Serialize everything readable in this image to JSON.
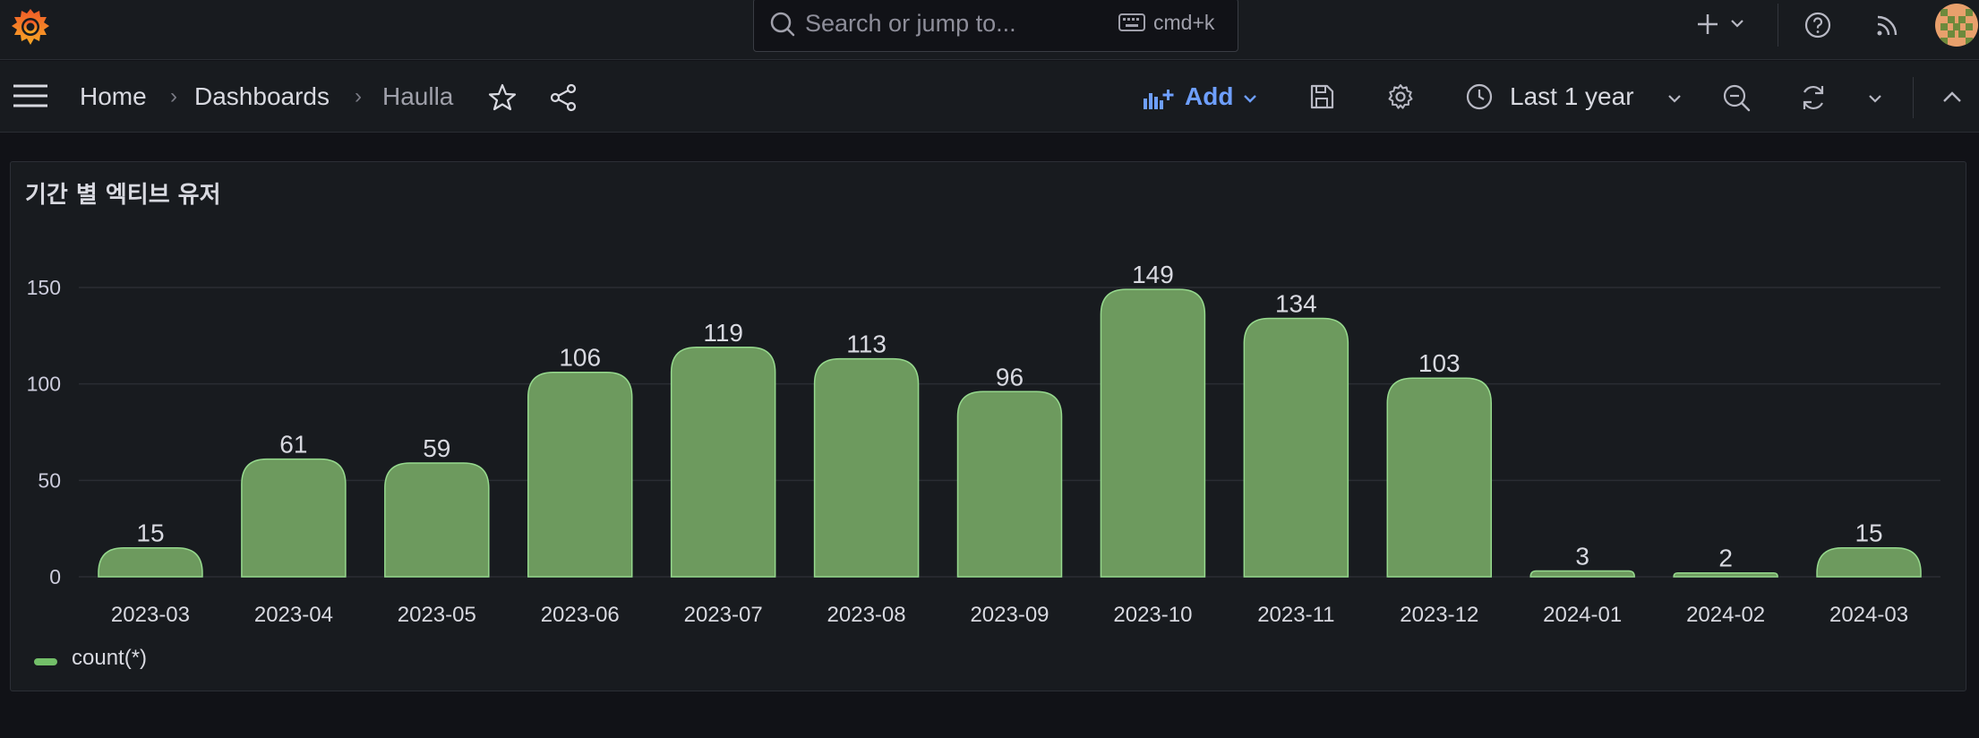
{
  "search": {
    "placeholder": "Search or jump to...",
    "shortcut": "cmd+k"
  },
  "breadcrumb": {
    "home": "Home",
    "dashboards": "Dashboards",
    "current": "Haulla"
  },
  "toolbar": {
    "add_label": "Add",
    "time_range": "Last 1 year"
  },
  "panel": {
    "title": "기간 별 엑티브 유저"
  },
  "colors": {
    "bar_fill": "#6d9a5e",
    "bar_stroke": "#96d98d",
    "accent": "#6e9fff",
    "legend": "#73bf69"
  },
  "icons": [
    "grafana-logo-icon",
    "search-icon",
    "keyboard-icon",
    "plus-icon",
    "chevron-down-icon",
    "help-icon",
    "rss-icon",
    "menu-icon",
    "star-icon",
    "share-icon",
    "add-panel-icon",
    "save-icon",
    "gear-icon",
    "clock-icon",
    "zoom-out-icon",
    "refresh-icon",
    "collapse-icon"
  ],
  "chart_data": {
    "type": "bar",
    "title": "기간 별 엑티브 유저",
    "categories": [
      "2023-03",
      "2023-04",
      "2023-05",
      "2023-06",
      "2023-07",
      "2023-08",
      "2023-09",
      "2023-10",
      "2023-11",
      "2023-12",
      "2024-01",
      "2024-02",
      "2024-03"
    ],
    "series": [
      {
        "name": "count(*)",
        "values": [
          15,
          61,
          59,
          106,
          119,
          113,
          96,
          149,
          134,
          103,
          3,
          2,
          15
        ]
      }
    ],
    "yticks": [
      0,
      50,
      100,
      150
    ],
    "ylim": [
      0,
      150
    ],
    "grid": true,
    "legend": "bottom-left"
  }
}
